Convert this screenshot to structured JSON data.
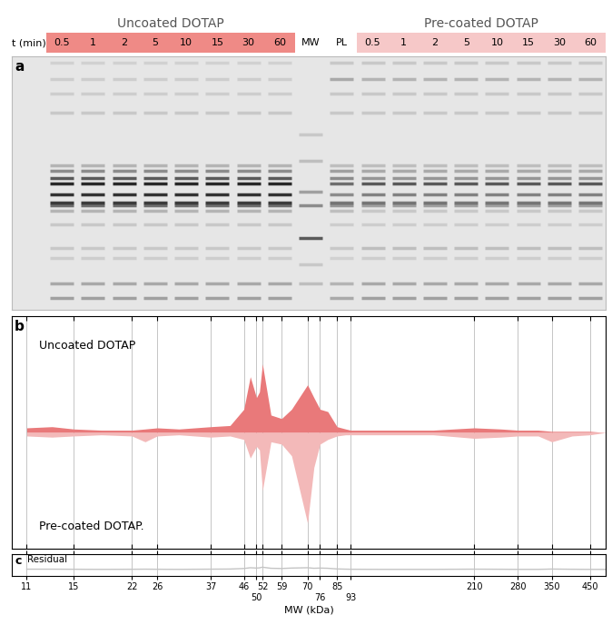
{
  "chart_data": [
    {
      "type": "gel",
      "panel": "a",
      "time_label": "t (min)",
      "groups": [
        {
          "name": "Uncoated DOTAP",
          "color": "#ef8a86",
          "times": [
            "0.5",
            "1",
            "2",
            "5",
            "10",
            "15",
            "30",
            "60"
          ],
          "band_intensity": [
            0.35,
            0.3,
            0.12,
            0.15,
            0.15,
            0.25,
            0.6,
            0.85,
            0.9,
            0.95,
            0.7,
            0.45,
            0.25,
            0.15,
            0.12,
            0.12,
            0.1
          ]
        },
        {
          "name": "Pre-coated DOTAP",
          "color": "#f6c8c8",
          "times": [
            "0.5",
            "1",
            "2",
            "5",
            "10",
            "15",
            "30",
            "60"
          ],
          "band_intensity": [
            0.35,
            0.3,
            0.12,
            0.2,
            0.12,
            0.15,
            0.35,
            0.55,
            0.5,
            0.7,
            0.4,
            0.3,
            0.2,
            0.15,
            0.15,
            0.25,
            0.15
          ]
        }
      ],
      "band_mw": [
        12,
        15,
        22,
        26,
        37,
        46,
        50,
        52,
        59,
        70,
        76,
        85,
        93,
        210,
        280,
        350,
        450
      ],
      "marker_lanes": [
        {
          "name": "MW",
          "band_mw": [
            15,
            20,
            30,
            50,
            62,
            100,
            150
          ],
          "band_intensity": [
            0.2,
            0.15,
            0.7,
            0.45,
            0.35,
            0.2,
            0.15
          ]
        },
        {
          "name": "PL",
          "band_mw": [
            12,
            15,
            22,
            26,
            37,
            46,
            50,
            52,
            59,
            70,
            76,
            85,
            93,
            210,
            280,
            350,
            450
          ],
          "band_intensity": [
            0.3,
            0.25,
            0.1,
            0.15,
            0.12,
            0.2,
            0.4,
            0.55,
            0.45,
            0.6,
            0.45,
            0.35,
            0.2,
            0.15,
            0.15,
            0.3,
            0.15
          ]
        }
      ],
      "ylim": [
        10,
        500
      ],
      "log": "y",
      "tick_labels": false
    },
    {
      "type": "area",
      "panel": "b",
      "x": [
        11,
        13,
        15,
        18,
        22,
        24,
        26,
        30,
        37,
        42,
        46,
        48,
        50,
        51,
        52,
        55,
        59,
        63,
        70,
        73,
        76,
        80,
        85,
        90,
        93,
        120,
        160,
        210,
        250,
        280,
        320,
        350,
        400,
        450,
        500
      ],
      "series": [
        {
          "name": "Uncoated DOTAP",
          "color": "#e9797a",
          "values": [
            0.04,
            0.05,
            0.03,
            0.02,
            0.02,
            0.03,
            0.04,
            0.03,
            0.05,
            0.06,
            0.2,
            0.48,
            0.3,
            0.35,
            0.59,
            0.15,
            0.12,
            0.2,
            0.41,
            0.3,
            0.2,
            0.18,
            0.05,
            0.03,
            0.02,
            0.02,
            0.02,
            0.04,
            0.03,
            0.02,
            0.02,
            0.01,
            0.01,
            0.01,
            0.0
          ]
        },
        {
          "name": "Pre-coated DOTAP.",
          "color": "#f3b9b9",
          "values": [
            -0.03,
            -0.04,
            -0.03,
            -0.02,
            -0.03,
            -0.08,
            -0.03,
            -0.02,
            -0.04,
            -0.03,
            -0.06,
            -0.22,
            -0.12,
            -0.15,
            -0.5,
            -0.08,
            -0.1,
            -0.2,
            -0.78,
            -0.3,
            -0.1,
            -0.06,
            -0.03,
            -0.02,
            -0.02,
            -0.02,
            -0.02,
            -0.05,
            -0.04,
            -0.03,
            -0.03,
            -0.08,
            -0.03,
            -0.02,
            0.0
          ]
        }
      ],
      "xlim": [
        10,
        500
      ],
      "xticks": [
        11,
        15,
        22,
        26,
        37,
        46,
        50,
        52,
        59,
        70,
        76,
        85,
        93,
        210,
        280,
        350,
        450
      ],
      "ylim": [
        -1,
        1
      ],
      "log": "x",
      "grid": true,
      "tick_labels": false
    },
    {
      "type": "line",
      "panel": "c",
      "title": "Residual",
      "xlabel": "MW (kDa)",
      "x": [
        11,
        13,
        15,
        18,
        22,
        24,
        26,
        30,
        37,
        42,
        46,
        48,
        50,
        51,
        52,
        55,
        59,
        63,
        70,
        73,
        76,
        80,
        85,
        90,
        93,
        120,
        160,
        210,
        250,
        280,
        320,
        350,
        400,
        450,
        500
      ],
      "values": [
        0.02,
        0.02,
        0.01,
        0.0,
        0.01,
        0.02,
        0.01,
        0.0,
        0.02,
        0.03,
        0.08,
        0.15,
        0.12,
        0.14,
        0.2,
        0.1,
        0.08,
        0.12,
        0.15,
        0.1,
        0.12,
        0.1,
        0.04,
        0.02,
        0.01,
        0.0,
        0.0,
        0.02,
        0.01,
        0.0,
        0.0,
        0.03,
        0.01,
        0.0,
        0.0
      ],
      "color": "#c4c4c4",
      "xlim": [
        10,
        500
      ],
      "xticks": [
        11,
        15,
        22,
        26,
        37,
        46,
        50,
        52,
        59,
        70,
        76,
        85,
        93,
        210,
        280,
        350,
        450
      ],
      "ylim": [
        -0.6,
        1.4
      ],
      "log": "x",
      "grid": true,
      "tick_labels": "x"
    }
  ]
}
